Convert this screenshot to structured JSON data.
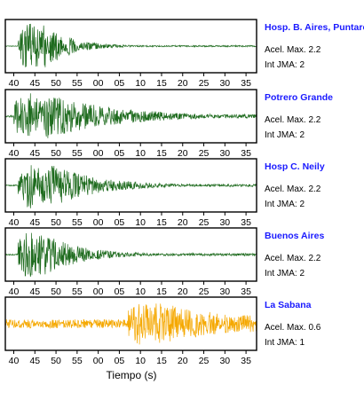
{
  "chart_data": {
    "type": "line",
    "xlabel": "Tiempo (s)",
    "x_tick_labels": [
      "40",
      "45",
      "50",
      "55",
      "00",
      "05",
      "10",
      "15",
      "20",
      "25",
      "30",
      "35"
    ],
    "series": [
      {
        "name": "Hosp. B. Aires, Puntare",
        "accel": "Acel. Max. 2.2",
        "jma": "Int JMA: 2",
        "color": "#1e6b1e",
        "t0": 41,
        "t1": 47,
        "amp": 0.95,
        "decay": 0.16,
        "floor": 0.03
      },
      {
        "name": "Potrero Grande",
        "accel": "Acel. Max. 2.2",
        "jma": "Int JMA: 2",
        "color": "#1e6b1e",
        "t0": 40,
        "t1": 47,
        "amp": 0.95,
        "decay": 0.06,
        "floor": 0.08
      },
      {
        "name": "Hosp C. Neily",
        "accel": "Acel. Max. 2.2",
        "jma": "Int JMA: 2",
        "color": "#1e6b1e",
        "t0": 41,
        "t1": 48,
        "amp": 0.95,
        "decay": 0.09,
        "floor": 0.05
      },
      {
        "name": "Buenos Aires",
        "accel": "Acel. Max. 2.2",
        "jma": "Int JMA: 2",
        "color": "#1e6b1e",
        "t0": 41,
        "t1": 46,
        "amp": 0.95,
        "decay": 0.11,
        "floor": 0.05
      },
      {
        "name": "La Sabana",
        "accel": "Acel. Max. 0.6",
        "jma": "Int JMA: 1",
        "color": "#f5a800",
        "t0": 67,
        "t1": 73,
        "amp": 0.92,
        "decay": 0.05,
        "floor": 0.35
      }
    ],
    "x_range": [
      38,
      97.5
    ]
  }
}
